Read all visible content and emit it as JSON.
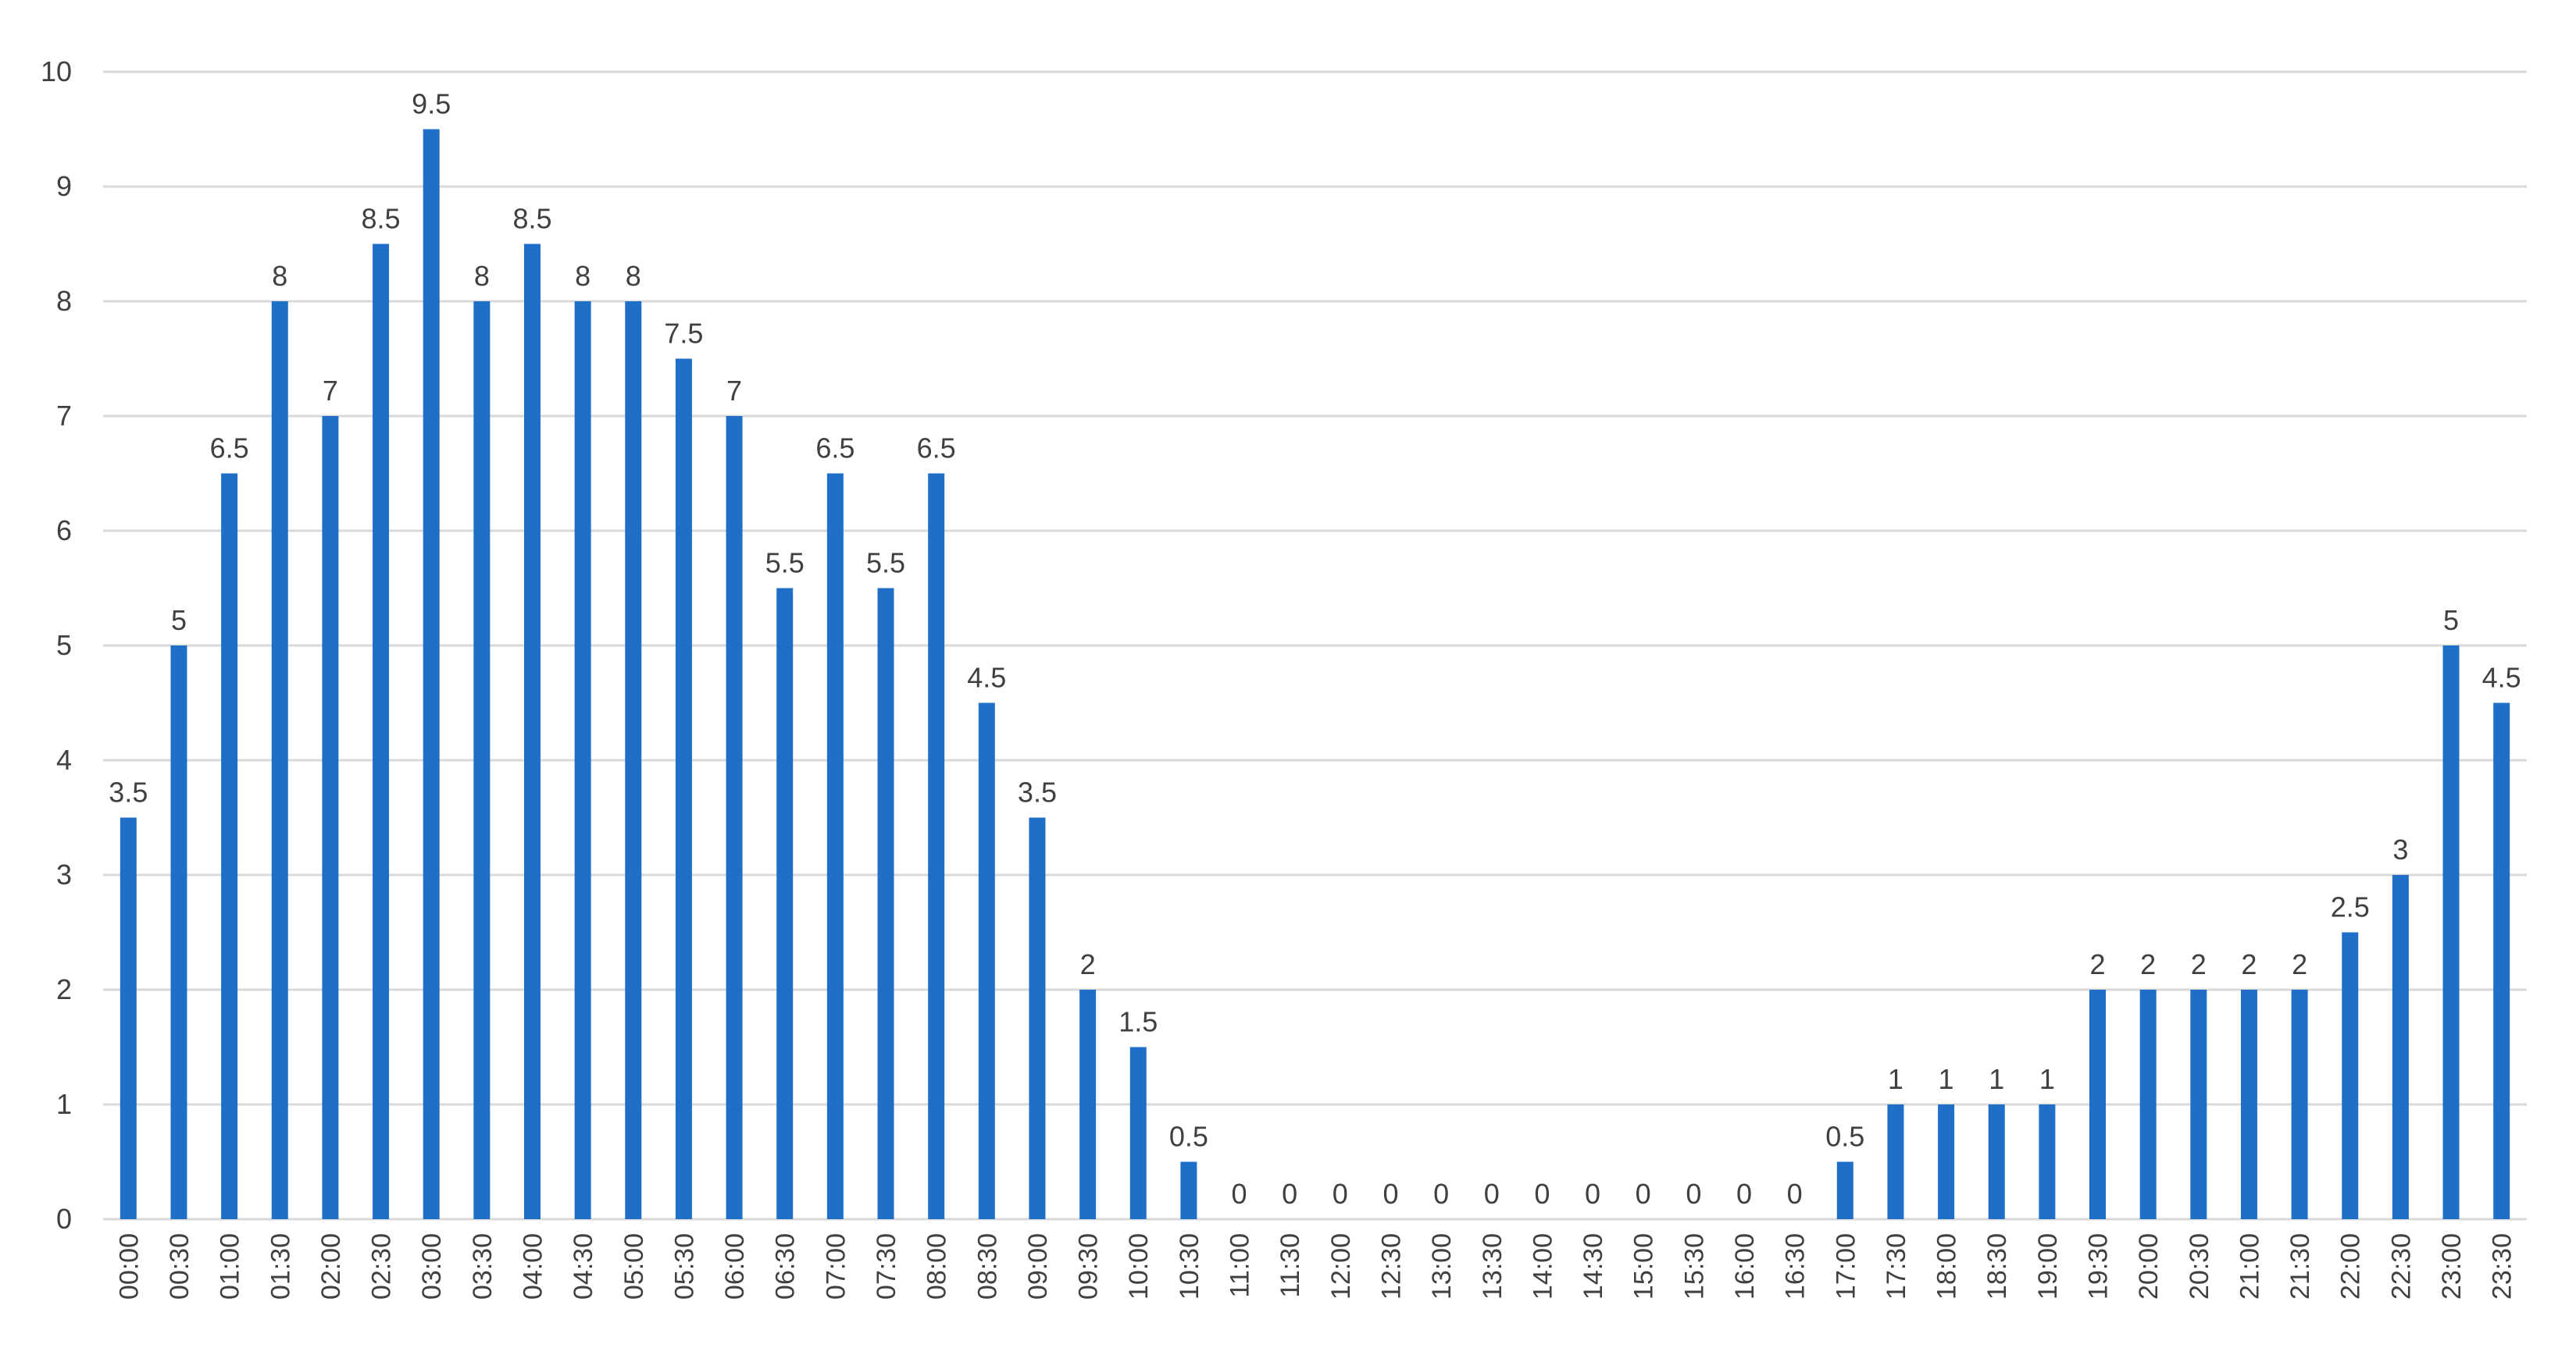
{
  "chart_data": {
    "type": "bar",
    "title": "",
    "xlabel": "",
    "ylabel": "",
    "ylim": [
      0,
      10
    ],
    "y_ticks": [
      0,
      1,
      2,
      3,
      4,
      5,
      6,
      7,
      8,
      9,
      10
    ],
    "grid": "horizontal",
    "legend": "none",
    "data_labels": true,
    "bar_color": "#1f6fc8",
    "grid_color": "#d9d9d9",
    "label_color": "#404040",
    "categories": [
      "00:00",
      "00:30",
      "01:00",
      "01:30",
      "02:00",
      "02:30",
      "03:00",
      "03:30",
      "04:00",
      "04:30",
      "05:00",
      "05:30",
      "06:00",
      "06:30",
      "07:00",
      "07:30",
      "08:00",
      "08:30",
      "09:00",
      "09:30",
      "10:00",
      "10:30",
      "11:00",
      "11:30",
      "12:00",
      "12:30",
      "13:00",
      "13:30",
      "14:00",
      "14:30",
      "15:00",
      "15:30",
      "16:00",
      "16:30",
      "17:00",
      "17:30",
      "18:00",
      "18:30",
      "19:00",
      "19:30",
      "20:00",
      "20:30",
      "21:00",
      "21:30",
      "22:00",
      "22:30",
      "23:00",
      "23:30"
    ],
    "values": [
      3.5,
      5,
      6.5,
      8,
      7,
      8.5,
      9.5,
      8,
      8.5,
      8,
      8,
      7.5,
      7,
      5.5,
      6.5,
      5.5,
      6.5,
      4.5,
      3.5,
      2,
      1.5,
      0.5,
      0,
      0,
      0,
      0,
      0,
      0,
      0,
      0,
      0,
      0,
      0,
      0,
      0.5,
      1,
      1,
      1,
      1,
      2,
      2,
      2,
      2,
      2,
      2.5,
      3,
      5,
      4.5
    ]
  }
}
